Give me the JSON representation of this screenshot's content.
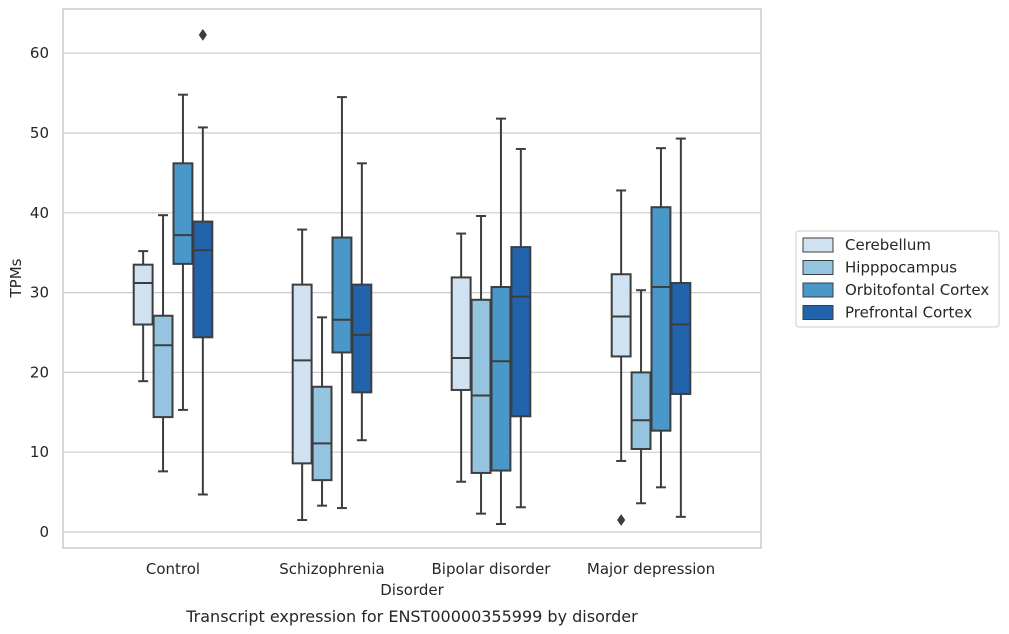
{
  "chart_data": {
    "type": "box",
    "caption": "Transcript expression for ENST00000355999 by disorder",
    "xlabel": "Disorder",
    "ylabel": "TPMs",
    "ylim": [
      -2,
      65
    ],
    "yticks": [
      0,
      10,
      20,
      30,
      40,
      50,
      60
    ],
    "grid": "horizontal",
    "legend_placement": "center-right",
    "categories": [
      "Control",
      "Schizophrenia",
      "Bipolar disorder",
      "Major depression"
    ],
    "series": [
      {
        "name": "Cerebellum",
        "color": "#d0e1f2",
        "boxes": [
          {
            "whisker_low": 18.9,
            "q1": 26.0,
            "median": 31.2,
            "q3": 33.5,
            "whisker_high": 35.2,
            "outliers": []
          },
          {
            "whisker_low": 1.5,
            "q1": 8.6,
            "median": 21.5,
            "q3": 31.0,
            "whisker_high": 37.9,
            "outliers": []
          },
          {
            "whisker_low": 6.3,
            "q1": 17.8,
            "median": 21.8,
            "q3": 31.9,
            "whisker_high": 37.4,
            "outliers": []
          },
          {
            "whisker_low": 8.9,
            "q1": 22.0,
            "median": 27.0,
            "q3": 32.3,
            "whisker_high": 42.8,
            "outliers": [
              1.5
            ]
          }
        ]
      },
      {
        "name": "Hipppocampus",
        "color": "#94c4df",
        "boxes": [
          {
            "whisker_low": 7.6,
            "q1": 14.4,
            "median": 23.4,
            "q3": 27.1,
            "whisker_high": 39.7,
            "outliers": []
          },
          {
            "whisker_low": 3.3,
            "q1": 6.5,
            "median": 11.1,
            "q3": 18.2,
            "whisker_high": 26.9,
            "outliers": []
          },
          {
            "whisker_low": 2.3,
            "q1": 7.4,
            "median": 17.1,
            "q3": 29.1,
            "whisker_high": 39.6,
            "outliers": []
          },
          {
            "whisker_low": 3.6,
            "q1": 10.4,
            "median": 14.0,
            "q3": 20.0,
            "whisker_high": 30.3,
            "outliers": []
          }
        ]
      },
      {
        "name": "Orbitofontal Cortex",
        "color": "#4a98c9",
        "boxes": [
          {
            "whisker_low": 15.3,
            "q1": 33.6,
            "median": 37.2,
            "q3": 46.2,
            "whisker_high": 54.8,
            "outliers": []
          },
          {
            "whisker_low": 3.0,
            "q1": 22.5,
            "median": 26.6,
            "q3": 36.9,
            "whisker_high": 54.5,
            "outliers": []
          },
          {
            "whisker_low": 1.0,
            "q1": 7.7,
            "median": 21.4,
            "q3": 30.7,
            "whisker_high": 51.8,
            "outliers": []
          },
          {
            "whisker_low": 5.6,
            "q1": 12.7,
            "median": 30.7,
            "q3": 40.7,
            "whisker_high": 48.1,
            "outliers": []
          }
        ]
      },
      {
        "name": "Prefrontal Cortex",
        "color": "#2164ab",
        "boxes": [
          {
            "whisker_low": 4.7,
            "q1": 24.4,
            "median": 35.3,
            "q3": 38.9,
            "whisker_high": 50.7,
            "outliers": [
              62.3
            ]
          },
          {
            "whisker_low": 11.5,
            "q1": 17.5,
            "median": 24.7,
            "q3": 31.0,
            "whisker_high": 46.2,
            "outliers": []
          },
          {
            "whisker_low": 3.1,
            "q1": 14.5,
            "median": 29.5,
            "q3": 35.7,
            "whisker_high": 48.0,
            "outliers": []
          },
          {
            "whisker_low": 1.9,
            "q1": 17.3,
            "median": 26.0,
            "q3": 31.2,
            "whisker_high": 49.3,
            "outliers": []
          }
        ]
      }
    ]
  },
  "colors": {
    "grid": "#cccccc",
    "frame": "#cccccc",
    "box_edge": "#3d3d3d"
  }
}
